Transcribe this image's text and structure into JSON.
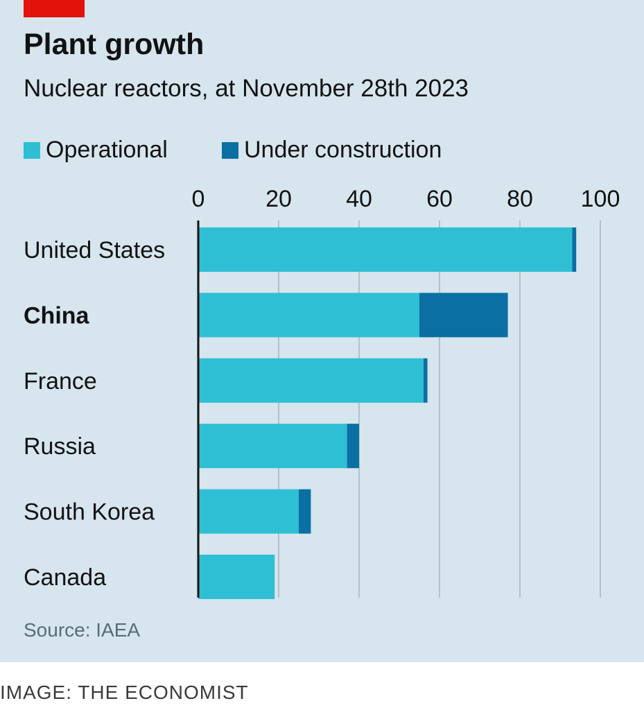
{
  "header": {
    "title": "Plant growth",
    "subtitle": "Nuclear reactors, at November 28th 2023"
  },
  "footer": {
    "source": "Source: IAEA",
    "credit": "IMAGE: THE ECONOMIST"
  },
  "colors": {
    "brand_red": "#e3120b",
    "background": "#d6e5ee",
    "operational": "#2ebfd4",
    "under_construction": "#0a6fa2",
    "gridline": "#b3c1c9",
    "axis": "#121212"
  },
  "chart_data": {
    "type": "bar",
    "orientation": "horizontal",
    "stacked": true,
    "title": "Plant growth",
    "subtitle": "Nuclear reactors, at November 28th 2023",
    "xlabel": "",
    "ylabel": "",
    "xlim": [
      0,
      100
    ],
    "xticks": [
      0,
      20,
      40,
      60,
      80,
      100
    ],
    "grid": true,
    "legend_position": "top-left",
    "categories": [
      "United States",
      "China",
      "France",
      "Russia",
      "South Korea",
      "Canada"
    ],
    "highlight": "China",
    "series": [
      {
        "name": "Operational",
        "values": [
          93,
          55,
          56,
          37,
          25,
          19
        ]
      },
      {
        "name": "Under construction",
        "values": [
          1,
          22,
          1,
          3,
          3,
          0
        ]
      }
    ],
    "source": "Source: IAEA"
  }
}
